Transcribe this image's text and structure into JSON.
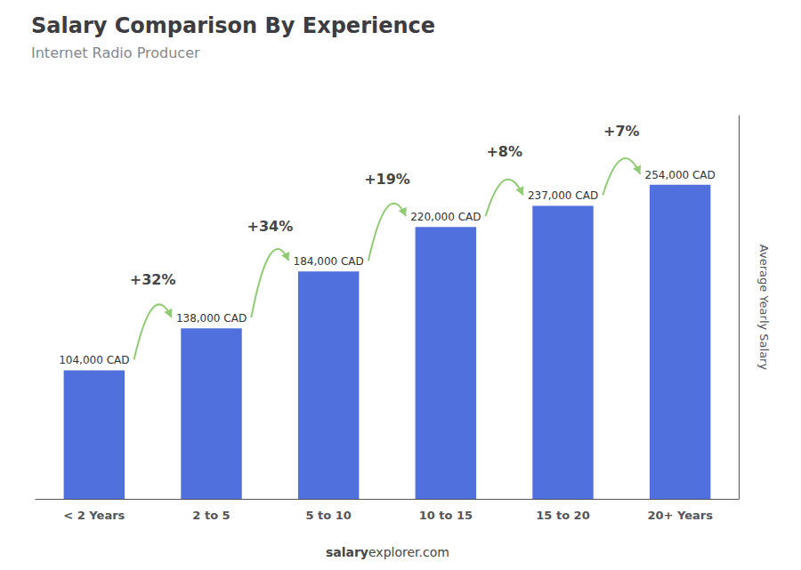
{
  "chart_data": {
    "type": "bar",
    "title": "Salary Comparison By Experience",
    "subtitle": "Internet Radio Producer",
    "ylabel": "Average Yearly Salary",
    "categories": [
      "< 2 Years",
      "2 to 5",
      "5 to 10",
      "10 to 15",
      "15 to 20",
      "20+ Years"
    ],
    "values": [
      104000,
      138000,
      184000,
      220000,
      237000,
      254000
    ],
    "value_labels": [
      "104,000 CAD",
      "138,000 CAD",
      "184,000 CAD",
      "220,000 CAD",
      "237,000 CAD",
      "254,000 CAD"
    ],
    "data_labels": true,
    "annotations": [
      "+32%",
      "+34%",
      "+19%",
      "+8%",
      "+7%"
    ],
    "watermark": [
      "salary",
      "explorer.com"
    ],
    "ylim": [
      0,
      310000
    ],
    "tick_labels": "x",
    "grid": false
  }
}
